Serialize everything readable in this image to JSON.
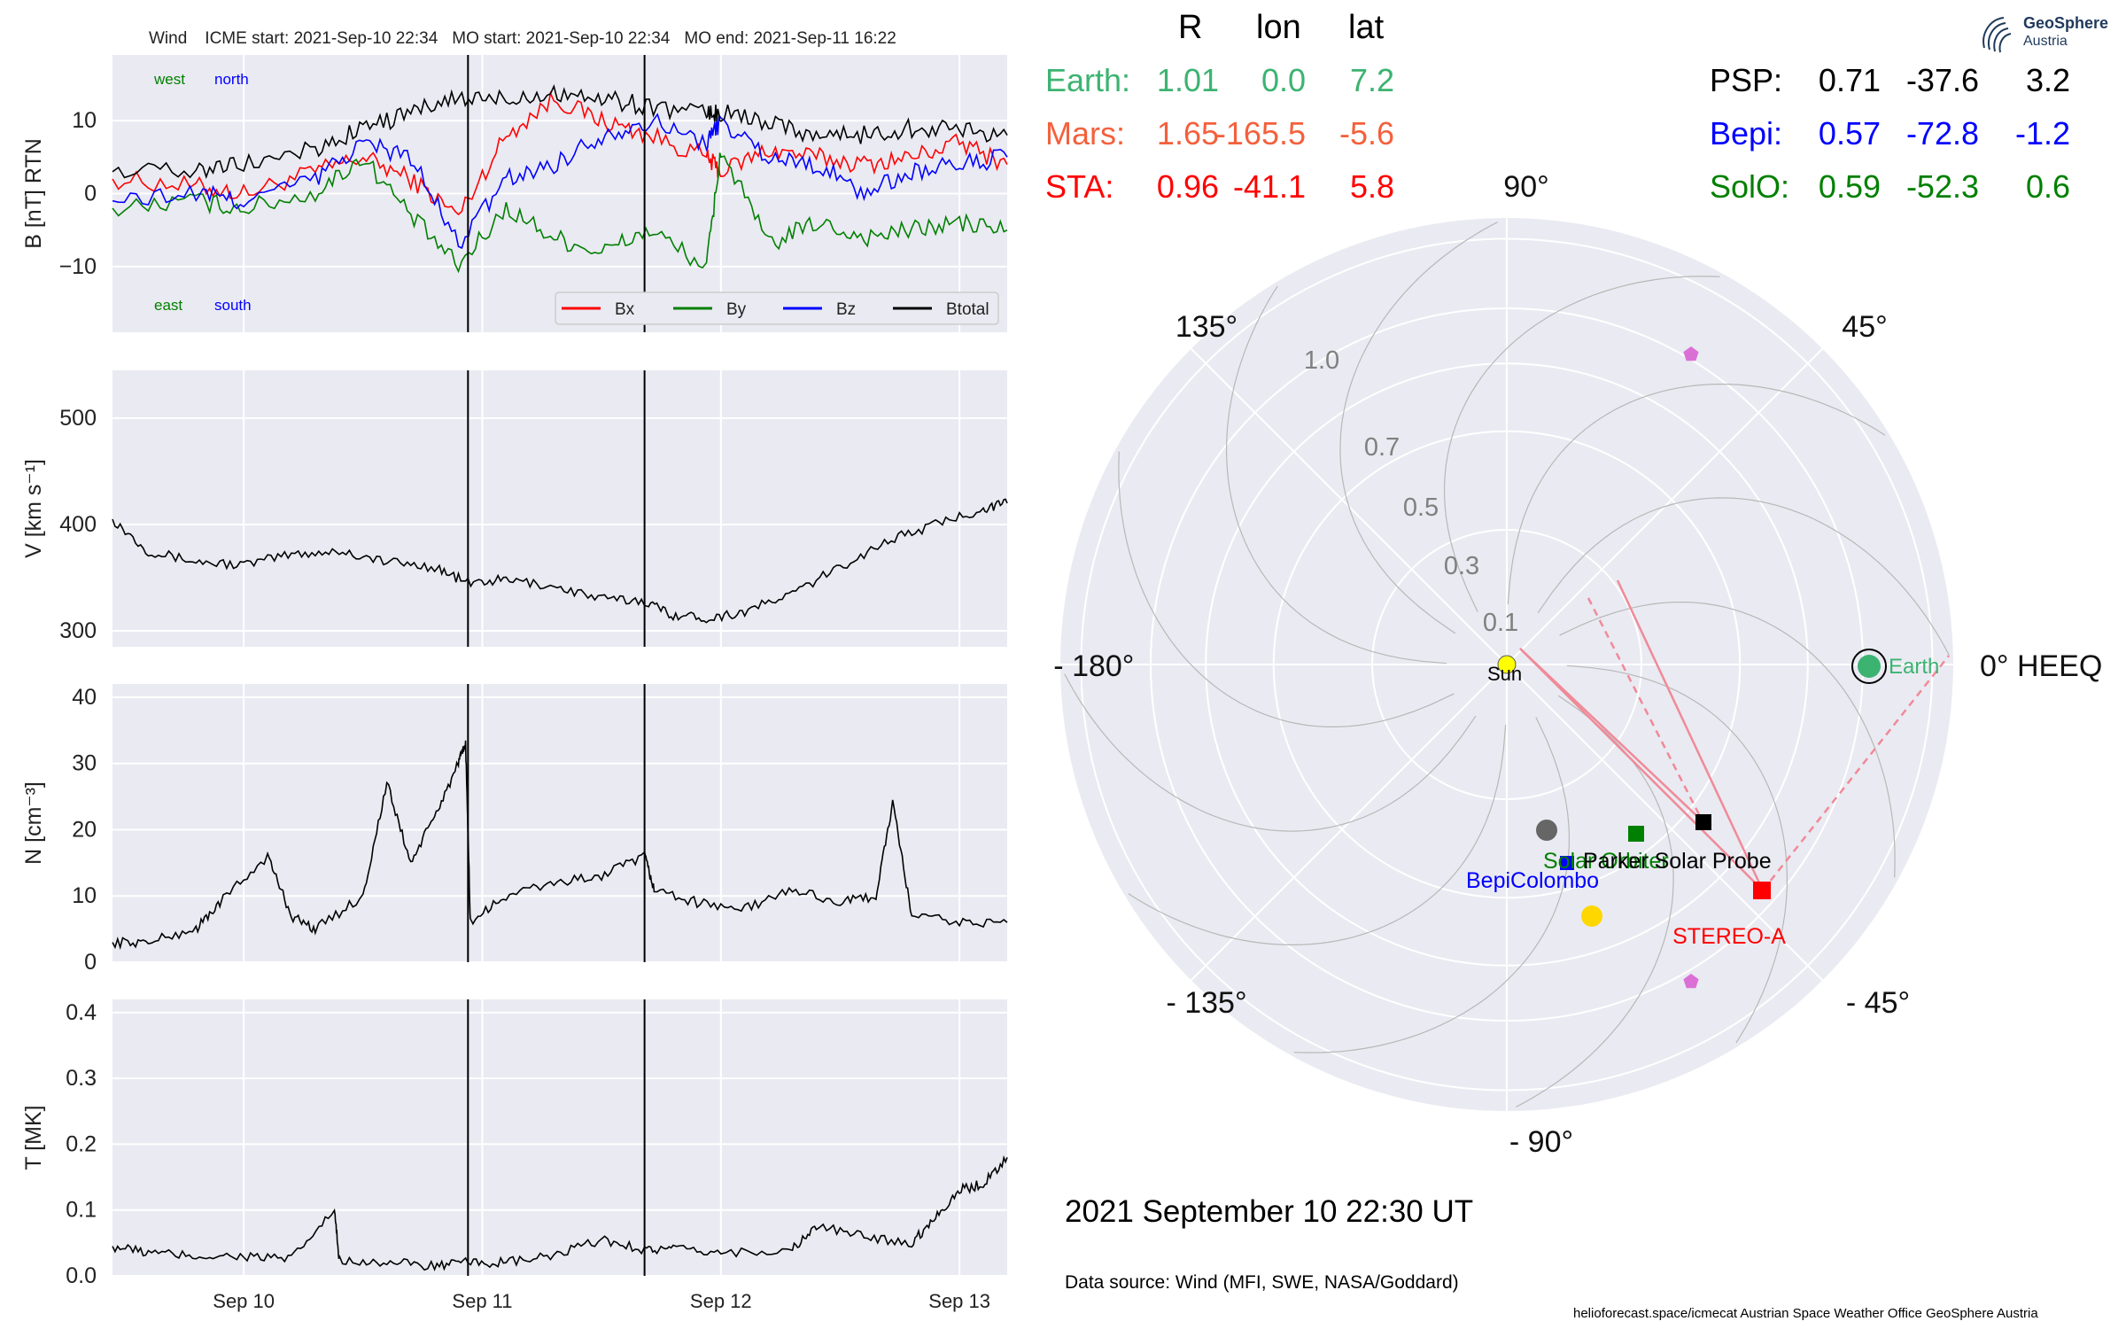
{
  "header": {
    "spacecraft": "Wind",
    "icme_start": "ICME start: 2021-Sep-10 22:34",
    "mo_start": "MO start: 2021-Sep-10 22:34",
    "mo_end": "MO end: 2021-Sep-11 16:22"
  },
  "timeseries": {
    "date_ticks": [
      "Sep 10",
      "Sep 11",
      "Sep 12",
      "Sep 13"
    ],
    "mag_panel": {
      "ylabel": "B [nT] RTN",
      "yticks": [
        "10",
        "0",
        "−10"
      ],
      "direction_labels": {
        "west": "west",
        "north": "north",
        "east": "east",
        "south": "south"
      },
      "legend": [
        "Bx",
        "By",
        "Bz",
        "Btotal"
      ]
    },
    "speed_panel": {
      "ylabel": "V [km s⁻¹]",
      "yticks": [
        "500",
        "400",
        "300"
      ]
    },
    "density_panel": {
      "ylabel": "N [cm⁻³]",
      "yticks": [
        "40",
        "30",
        "20",
        "10",
        "0"
      ]
    },
    "temp_panel": {
      "ylabel": "T [MK]",
      "yticks": [
        "0.4",
        "0.3",
        "0.2",
        "0.1",
        "0.0"
      ]
    }
  },
  "positions_table": {
    "headers": [
      "R",
      "lon",
      "lat"
    ],
    "left": [
      {
        "name": "Earth:",
        "r": "1.01",
        "lon": "0.0",
        "lat": "7.2",
        "color": "#3cb371"
      },
      {
        "name": "Mars:",
        "r": "1.65",
        "lon": "-165.5",
        "lat": "-5.6",
        "color": "#f4603c"
      },
      {
        "name": "STA:",
        "r": "0.96",
        "lon": "-41.1",
        "lat": "5.8",
        "color": "#ff0000"
      }
    ],
    "right": [
      {
        "name": "PSP:",
        "r": "0.71",
        "lon": "-37.6",
        "lat": "3.2",
        "color": "#000000"
      },
      {
        "name": "Bepi:",
        "r": "0.57",
        "lon": "-72.8",
        "lat": "-1.2",
        "color": "#0000ff"
      },
      {
        "name": "SolO:",
        "r": "0.59",
        "lon": "-52.3",
        "lat": "0.6",
        "color": "#008000"
      }
    ]
  },
  "polar": {
    "angle_labels": [
      "90°",
      "45°",
      "0° HEEQ",
      "- 45°",
      "- 90°",
      "- 135°",
      "+/- 180°",
      "135°"
    ],
    "radial_labels": [
      "0.1",
      "0.3",
      "0.5",
      "0.7",
      "1.0"
    ],
    "bodies": {
      "sun": "Sun",
      "earth": "Earth",
      "stereo_a": "STEREO-A",
      "psp": "Parker Solar Probe",
      "bepi": "BepiColombo",
      "solo": "Solar Orbiter"
    }
  },
  "datetime": "2021 September 10  22:30 UT",
  "data_source": "Data source: Wind (MFI, SWE, NASA/Goddard)",
  "footer": "helioforecast.space/icmecat   Austrian Space Weather Office   GeoSphere Austria",
  "logo": {
    "line1": "GeoSphere",
    "line2": "Austria"
  },
  "chart_data": [
    {
      "type": "line",
      "title": "Wind    ICME start: 2021-Sep-10 22:34   MO start: 2021-Sep-10 22:34   MO end: 2021-Sep-11 16:22",
      "ylabel": "B [nT] RTN",
      "ylim": [
        -19,
        19
      ],
      "x_unit": "days since 2021-09-09 00:00 UT",
      "xlim": [
        0.45,
        4.2
      ],
      "x": [
        0.45,
        0.8,
        1.0,
        1.3,
        1.5,
        1.7,
        1.9,
        2.1,
        2.3,
        2.5,
        2.7,
        2.94,
        3.0,
        3.2,
        3.4,
        3.6,
        3.8,
        4.0,
        4.2
      ],
      "series": [
        {
          "name": "Bx",
          "color": "#ff0000",
          "values": [
            2,
            1,
            0,
            3,
            5,
            2,
            -3,
            8,
            13,
            10,
            8,
            5,
            3,
            6,
            5,
            4,
            5,
            7,
            4
          ]
        },
        {
          "name": "By",
          "color": "#008000",
          "values": [
            -2,
            -1,
            -2,
            0,
            5,
            -3,
            -10,
            -2,
            -6,
            -8,
            -5,
            -10,
            6,
            -7,
            -4,
            -6,
            -5,
            -4,
            -5
          ]
        },
        {
          "name": "Bz",
          "color": "#0000ff",
          "values": [
            -1,
            0,
            -1,
            2,
            7,
            5,
            -7,
            2,
            4,
            8,
            10,
            7,
            10,
            5,
            4,
            0,
            3,
            4,
            5
          ]
        },
        {
          "name": "Btotal",
          "color": "#000000",
          "values": [
            3,
            3,
            4,
            6,
            9,
            11,
            13,
            13,
            14,
            13,
            12,
            11,
            11,
            10,
            8,
            8,
            9,
            9,
            8
          ]
        }
      ],
      "vlines": [
        1.94,
        2.68
      ]
    },
    {
      "type": "line",
      "ylabel": "V [km s⁻¹]",
      "ylim": [
        285,
        545
      ],
      "x": [
        0.45,
        0.6,
        0.8,
        1.0,
        1.2,
        1.4,
        1.6,
        1.8,
        1.94,
        2.1,
        2.3,
        2.5,
        2.68,
        2.8,
        2.95,
        3.1,
        3.3,
        3.5,
        3.7,
        3.9,
        4.1,
        4.2
      ],
      "series": [
        {
          "name": "",
          "color": "#000000",
          "values": [
            405,
            375,
            365,
            362,
            372,
            375,
            365,
            360,
            345,
            348,
            342,
            330,
            328,
            315,
            312,
            318,
            335,
            360,
            385,
            400,
            415,
            420
          ]
        }
      ],
      "vlines": [
        1.94,
        2.68
      ]
    },
    {
      "type": "line",
      "ylabel": "N [cm⁻³]",
      "ylim": [
        0,
        42
      ],
      "x": [
        0.45,
        0.6,
        0.8,
        0.9,
        1.1,
        1.2,
        1.3,
        1.5,
        1.6,
        1.7,
        1.8,
        1.9,
        1.93,
        1.95,
        2.1,
        2.3,
        2.5,
        2.68,
        2.72,
        2.9,
        3.1,
        3.3,
        3.5,
        3.65,
        3.72,
        3.8,
        4.0,
        4.2
      ],
      "series": [
        {
          "name": "",
          "color": "#000000",
          "values": [
            3,
            3,
            5,
            9,
            16,
            7,
            5,
            10,
            27,
            15,
            22,
            30,
            33,
            6,
            10,
            12,
            13,
            16,
            11,
            9,
            8,
            11,
            9,
            10,
            24,
            7,
            6,
            6
          ]
        }
      ],
      "vlines": [
        1.94,
        2.68
      ]
    },
    {
      "type": "line",
      "ylabel": "T [MK]",
      "ylim": [
        0,
        0.42
      ],
      "x": [
        0.45,
        0.6,
        0.8,
        1.0,
        1.2,
        1.38,
        1.4,
        1.6,
        1.8,
        1.94,
        2.1,
        2.3,
        2.5,
        2.68,
        2.8,
        3.0,
        3.3,
        3.4,
        3.6,
        3.8,
        3.9,
        4.0,
        4.1,
        4.2
      ],
      "series": [
        {
          "name": "",
          "color": "#000000",
          "values": [
            0.045,
            0.035,
            0.03,
            0.03,
            0.025,
            0.1,
            0.025,
            0.02,
            0.015,
            0.02,
            0.02,
            0.03,
            0.055,
            0.04,
            0.04,
            0.035,
            0.04,
            0.075,
            0.06,
            0.05,
            0.09,
            0.13,
            0.14,
            0.18
          ]
        }
      ],
      "vlines": [
        1.94,
        2.68
      ]
    }
  ]
}
